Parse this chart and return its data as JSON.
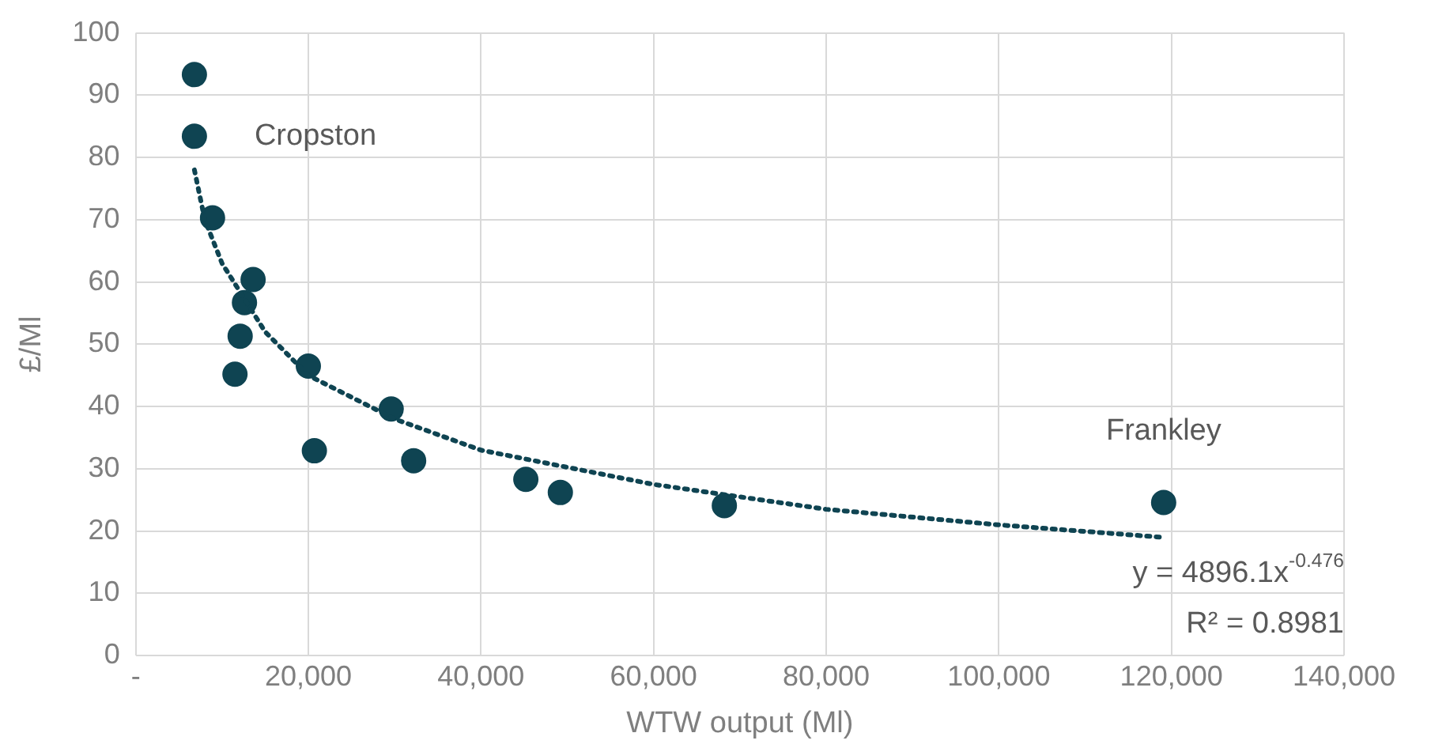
{
  "chart_data": {
    "type": "scatter",
    "xlabel": "WTW output (Ml)",
    "ylabel": "£/Ml",
    "xlim": [
      0,
      140000
    ],
    "xticks": [
      {
        "value": 0,
        "label": "-"
      },
      {
        "value": 20000,
        "label": "20,000"
      },
      {
        "value": 40000,
        "label": "40,000"
      },
      {
        "value": 60000,
        "label": "60,000"
      },
      {
        "value": 80000,
        "label": "80,000"
      },
      {
        "value": 100000,
        "label": "100,000"
      },
      {
        "value": 120000,
        "label": "120,000"
      },
      {
        "value": 140000,
        "label": "140,000"
      }
    ],
    "ylim": [
      0,
      100
    ],
    "yticks": [
      0,
      10,
      20,
      30,
      40,
      50,
      60,
      70,
      80,
      90,
      100
    ],
    "grid": true,
    "legend": false,
    "marker": "circle",
    "series": [
      {
        "color": "#0f4452",
        "x": [
          6800,
          6800,
          8900,
          13600,
          12600,
          12100,
          11500,
          20000,
          20700,
          29600,
          32200,
          45200,
          49200,
          68200,
          119100
        ],
        "values": [
          93.3,
          83.4,
          70.3,
          60.4,
          56.7,
          51.3,
          45.2,
          46.5,
          32.9,
          39.6,
          31.3,
          28.3,
          26.2,
          24.1,
          24.6
        ]
      },
      {
        "type": "line",
        "color": "#0f4452",
        "marker": "none",
        "line_style": "dotted",
        "x": [
          6800,
          8000,
          10000,
          15000,
          20000,
          30000,
          40000,
          60000,
          80000,
          100000,
          119000
        ],
        "values": [
          78,
          70,
          63,
          52,
          45,
          38,
          33,
          27.5,
          23.5,
          21,
          19
        ]
      }
    ],
    "annotations": [
      {
        "text": "Cropston",
        "x": 6800,
        "y": 83.4
      },
      {
        "text": "Frankley",
        "x": 119100,
        "y": 24.6
      },
      "y = 4896.1x$^{-0.476}$",
      "R² = 0.8981"
    ]
  }
}
